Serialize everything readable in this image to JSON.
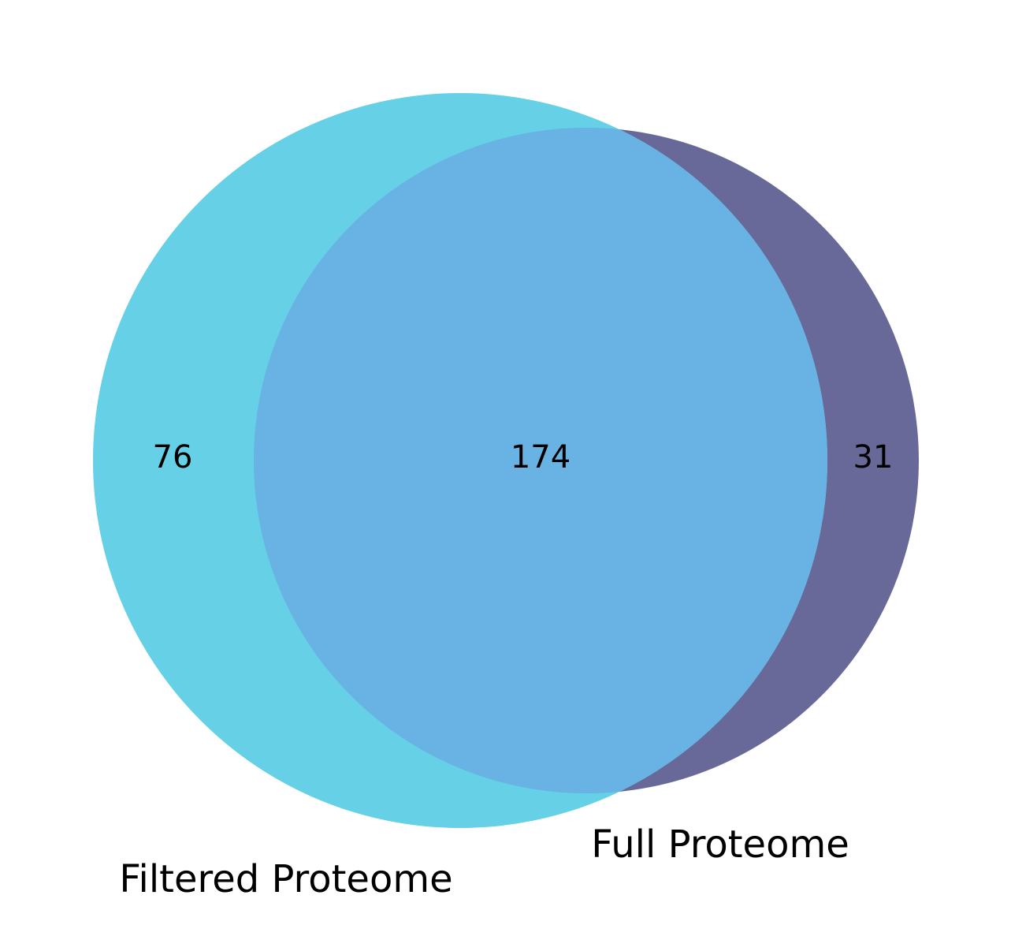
{
  "chart_data": {
    "type": "venn",
    "sets": [
      {
        "name": "Filtered Proteome",
        "color": "#65D0E6"
      },
      {
        "name": "Full Proteome",
        "color": "#686899"
      }
    ],
    "regions": {
      "filtered_only": 76,
      "intersection": 174,
      "full_only": 31
    },
    "intersection_color": "#68B2E4"
  }
}
